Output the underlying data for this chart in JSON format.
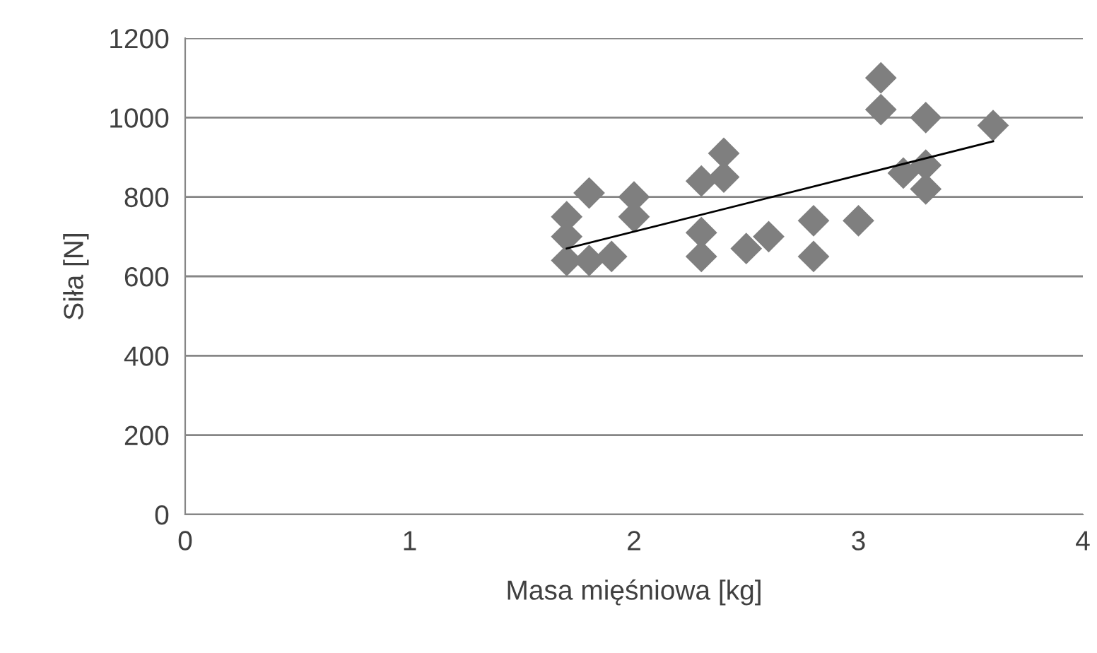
{
  "chart_data": {
    "type": "scatter",
    "xlabel": "Masa mięśniowa [kg]",
    "ylabel": "Siła [N]",
    "xlim": [
      0,
      4
    ],
    "xticks": [
      0,
      1,
      2,
      3,
      4
    ],
    "ylim": [
      0,
      1200
    ],
    "yticks": [
      0,
      200,
      400,
      600,
      800,
      1000,
      1200
    ],
    "grid": "y",
    "legend": false,
    "series": [
      {
        "color": "#7f7f7f",
        "marker": "diamond",
        "x": [
          1.7,
          1.7,
          1.7,
          1.8,
          1.8,
          1.9,
          2.0,
          2.0,
          2.3,
          2.3,
          2.3,
          2.4,
          2.4,
          2.5,
          2.6,
          2.8,
          2.8,
          3.0,
          3.1,
          3.1,
          3.3,
          3.2,
          3.3,
          3.3,
          3.6
        ],
        "values": [
          750,
          700,
          640,
          640,
          810,
          650,
          800,
          750,
          840,
          710,
          650,
          910,
          850,
          670,
          700,
          740,
          650,
          740,
          1100,
          1020,
          1000,
          860,
          880,
          820,
          980
        ]
      },
      {
        "type": "line",
        "color": "#000000",
        "marker": "none",
        "x": [
          1.7,
          3.6
        ],
        "values": [
          670,
          940
        ]
      }
    ]
  }
}
